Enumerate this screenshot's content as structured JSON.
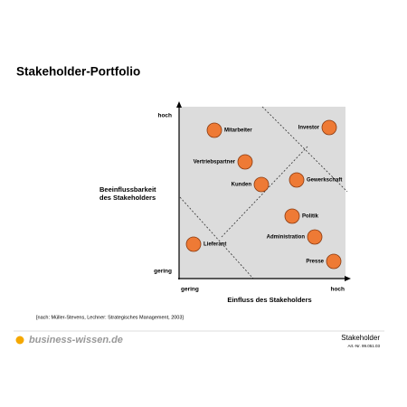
{
  "header": {
    "title": "Stakeholder-Portfolio"
  },
  "axes": {
    "y_title": [
      "Beeinflussbarkeit",
      "des Stakeholders"
    ],
    "y_high": "hoch",
    "y_low": "gering",
    "x_title": "Einfluss des Stakeholders",
    "x_low": "gering",
    "x_high": "hoch"
  },
  "nodes": [
    {
      "label": "Mitarbeiter"
    },
    {
      "label": "Investor"
    },
    {
      "label": "Vertriebspartner"
    },
    {
      "label": "Kunden"
    },
    {
      "label": "Gewerkschaft"
    },
    {
      "label": "Politik"
    },
    {
      "label": "Administration"
    },
    {
      "label": "Lieferant"
    },
    {
      "label": "Presse"
    }
  ],
  "source": "[nach: Müller-Stevens, Lechner: Strategisches Management, 2003]",
  "footer": {
    "brand": "business-wissen.de",
    "topic": "Stakeholder",
    "article": "Art.-Nr. 99.051.03"
  }
}
